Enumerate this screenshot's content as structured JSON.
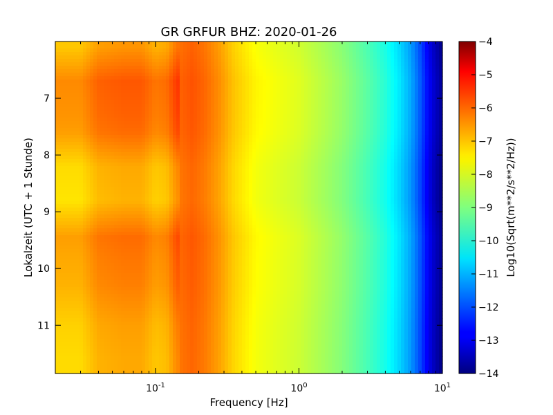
{
  "chart_data": {
    "type": "heatmap",
    "title": "GR GRFUR BHZ: 2020-01-26",
    "xlabel": "Frequency [Hz]",
    "ylabel": "Lokalzeit (UTC + 1 Stunde)",
    "colorbar_label": "Log10(Sqrt(m**2/s**2/Hz))",
    "x_scale": "log",
    "xlim": [
      0.02,
      10
    ],
    "ylim": [
      6.0,
      11.85
    ],
    "y_inverted": true,
    "x_ticks": [
      {
        "value": 0.1,
        "label": "10",
        "exp": "-1"
      },
      {
        "value": 1,
        "label": "10",
        "exp": "0"
      },
      {
        "value": 10,
        "label": "10",
        "exp": "1"
      }
    ],
    "y_ticks": [
      7,
      8,
      9,
      10,
      11
    ],
    "colorbar_range": [
      -14,
      -4
    ],
    "colorbar_ticks": [
      -4,
      -5,
      -6,
      -7,
      -8,
      -9,
      -10,
      -11,
      -12,
      -13,
      -14
    ],
    "colormap": "jet",
    "frequency_profile": {
      "frequency_hz": [
        0.02,
        0.03,
        0.04,
        0.06,
        0.08,
        0.1,
        0.12,
        0.14,
        0.18,
        0.22,
        0.28,
        0.35,
        0.5,
        0.7,
        1.0,
        1.5,
        2.0,
        3.0,
        4.0,
        5.0,
        6.0,
        7.0,
        8.0,
        9.0,
        10.0
      ],
      "log10_amplitude": [
        -7.2,
        -7.2,
        -6.8,
        -6.7,
        -6.7,
        -7.0,
        -6.9,
        -6.4,
        -6.2,
        -6.4,
        -6.8,
        -7.3,
        -7.8,
        -8.0,
        -8.2,
        -8.6,
        -8.9,
        -9.5,
        -10.0,
        -10.6,
        -11.2,
        -12.0,
        -12.9,
        -13.5,
        -13.9
      ]
    },
    "time_bands": [
      {
        "time": 6.1,
        "offset": 0.0
      },
      {
        "time": 6.7,
        "offset": 0.6
      },
      {
        "time": 7.3,
        "offset": 0.5
      },
      {
        "time": 7.6,
        "offset": 0.4
      },
      {
        "time": 8.2,
        "offset": -0.2
      },
      {
        "time": 8.8,
        "offset": -0.3
      },
      {
        "time": 9.45,
        "offset": 0.4
      },
      {
        "time": 9.8,
        "offset": 0.3
      },
      {
        "time": 10.3,
        "offset": 0.2
      },
      {
        "time": 11.0,
        "offset": -0.1
      },
      {
        "time": 11.6,
        "offset": -0.2
      }
    ]
  }
}
